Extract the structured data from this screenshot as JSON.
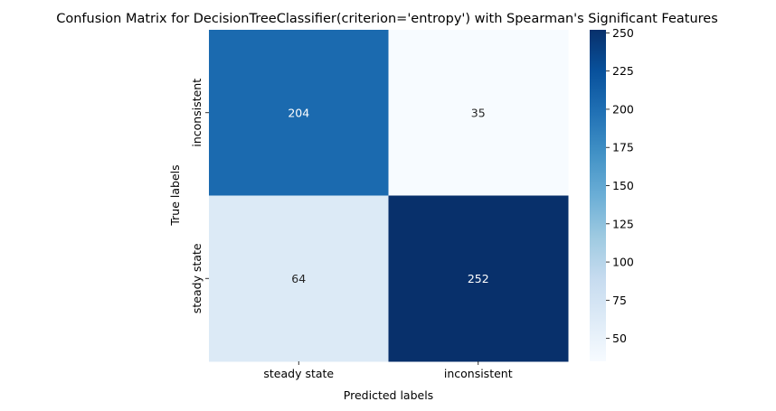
{
  "chart_data": {
    "type": "heatmap",
    "title": "Confusion Matrix for DecisionTreeClassifier(criterion='entropy') with Spearman's Significant Features",
    "xlabel": "Predicted labels",
    "ylabel": "True labels",
    "x_categories": [
      "steady state",
      "inconsistent"
    ],
    "y_categories": [
      "inconsistent",
      "steady state"
    ],
    "values": [
      [
        204,
        35
      ],
      [
        64,
        252
      ]
    ],
    "colormap": "Blues",
    "vmin": 35,
    "vmax": 252,
    "colorbar_ticks": [
      50,
      75,
      100,
      125,
      150,
      175,
      200,
      225,
      250
    ],
    "colorbar_tick_labels": [
      "50",
      "75",
      "100",
      "125",
      "150",
      "175",
      "200",
      "225",
      "250"
    ],
    "annotations": true,
    "grid": false
  }
}
